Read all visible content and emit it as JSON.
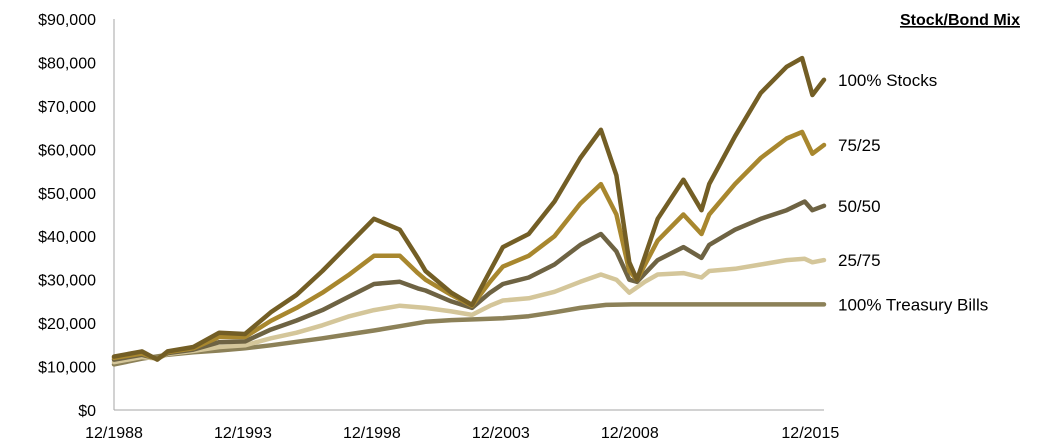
{
  "chart_data": {
    "type": "line",
    "title": "",
    "xlabel": "",
    "ylabel": "",
    "legend_title": "Stock/Bond Mix",
    "legend_placement": "right",
    "grid": false,
    "x_range": [
      1988.92,
      2016.45
    ],
    "ylim": [
      0,
      90000
    ],
    "y_ticks": [
      {
        "value": 0,
        "label": "$0"
      },
      {
        "value": 10000,
        "label": "$10,000"
      },
      {
        "value": 20000,
        "label": "$20,000"
      },
      {
        "value": 30000,
        "label": "$30,000"
      },
      {
        "value": 40000,
        "label": "$40,000"
      },
      {
        "value": 50000,
        "label": "$50,000"
      },
      {
        "value": 60000,
        "label": "$60,000"
      },
      {
        "value": 70000,
        "label": "$70,000"
      },
      {
        "value": 80000,
        "label": "$80,000"
      },
      {
        "value": 90000,
        "label": "$90,000"
      }
    ],
    "x_ticks": [
      {
        "value": 1988.92,
        "label": "12/1988"
      },
      {
        "value": 1993.92,
        "label": "12/1993"
      },
      {
        "value": 1998.92,
        "label": "12/1998"
      },
      {
        "value": 2003.92,
        "label": "12/2003"
      },
      {
        "value": 2008.92,
        "label": "12/2008"
      },
      {
        "value": 2015.92,
        "label": "12/2015"
      }
    ],
    "series": [
      {
        "name": "100% Treasury Bills",
        "color": "#8c8158",
        "width": 4.5,
        "points": [
          [
            1988.92,
            10500
          ],
          [
            1990,
            11800
          ],
          [
            1991,
            12700
          ],
          [
            1992,
            13300
          ],
          [
            1993,
            13700
          ],
          [
            1994,
            14200
          ],
          [
            1995,
            14900
          ],
          [
            1996,
            15700
          ],
          [
            1997,
            16500
          ],
          [
            1998,
            17400
          ],
          [
            1999,
            18300
          ],
          [
            2000,
            19300
          ],
          [
            2001,
            20300
          ],
          [
            2002,
            20700
          ],
          [
            2003,
            20900
          ],
          [
            2004,
            21100
          ],
          [
            2005,
            21600
          ],
          [
            2006,
            22500
          ],
          [
            2007,
            23500
          ],
          [
            2008,
            24200
          ],
          [
            2009,
            24300
          ],
          [
            2010,
            24300
          ],
          [
            2012,
            24300
          ],
          [
            2014,
            24300
          ],
          [
            2016.45,
            24300
          ]
        ]
      },
      {
        "name": "25/75",
        "color": "#d4c69a",
        "width": 4.5,
        "points": [
          [
            1988.92,
            11000
          ],
          [
            1990,
            12200
          ],
          [
            1990.6,
            11800
          ],
          [
            1991,
            12900
          ],
          [
            1992,
            13600
          ],
          [
            1993,
            14500
          ],
          [
            1994,
            14900
          ],
          [
            1995,
            16500
          ],
          [
            1996,
            17800
          ],
          [
            1997,
            19500
          ],
          [
            1998,
            21500
          ],
          [
            1999,
            23000
          ],
          [
            2000,
            24000
          ],
          [
            2001,
            23500
          ],
          [
            2002,
            22700
          ],
          [
            2002.8,
            21900
          ],
          [
            2003.5,
            24000
          ],
          [
            2004,
            25200
          ],
          [
            2005,
            25700
          ],
          [
            2006,
            27200
          ],
          [
            2007,
            29500
          ],
          [
            2007.8,
            31200
          ],
          [
            2008.4,
            30000
          ],
          [
            2008.9,
            27000
          ],
          [
            2009.5,
            29500
          ],
          [
            2010,
            31200
          ],
          [
            2011,
            31500
          ],
          [
            2011.7,
            30500
          ],
          [
            2012,
            32000
          ],
          [
            2013,
            32500
          ],
          [
            2014,
            33500
          ],
          [
            2015,
            34500
          ],
          [
            2015.7,
            34800
          ],
          [
            2016,
            34000
          ],
          [
            2016.45,
            34500
          ]
        ]
      },
      {
        "name": "50/50",
        "color": "#6e6343",
        "width": 4.5,
        "points": [
          [
            1988.92,
            11600
          ],
          [
            1990,
            12700
          ],
          [
            1990.6,
            11800
          ],
          [
            1991,
            13100
          ],
          [
            1992,
            13900
          ],
          [
            1993,
            15600
          ],
          [
            1994,
            15800
          ],
          [
            1995,
            18500
          ],
          [
            1996,
            20600
          ],
          [
            1997,
            23000
          ],
          [
            1998,
            26000
          ],
          [
            1999,
            29000
          ],
          [
            2000,
            29500
          ],
          [
            2000.7,
            28000
          ],
          [
            2001,
            27500
          ],
          [
            2002,
            25000
          ],
          [
            2002.8,
            23500
          ],
          [
            2003.5,
            27000
          ],
          [
            2004,
            29000
          ],
          [
            2005,
            30500
          ],
          [
            2006,
            33500
          ],
          [
            2007,
            38000
          ],
          [
            2007.8,
            40500
          ],
          [
            2008.4,
            36500
          ],
          [
            2008.9,
            30000
          ],
          [
            2009.2,
            29500
          ],
          [
            2010,
            34500
          ],
          [
            2011,
            37500
          ],
          [
            2011.7,
            35000
          ],
          [
            2012,
            38000
          ],
          [
            2013,
            41500
          ],
          [
            2014,
            44000
          ],
          [
            2015,
            46000
          ],
          [
            2015.7,
            48000
          ],
          [
            2016,
            46000
          ],
          [
            2016.45,
            47000
          ]
        ]
      },
      {
        "name": "75/25",
        "color": "#a8872e",
        "width": 4.5,
        "points": [
          [
            1988.92,
            12000
          ],
          [
            1990,
            13000
          ],
          [
            1990.6,
            11700
          ],
          [
            1991,
            13300
          ],
          [
            1992,
            14200
          ],
          [
            1993,
            16800
          ],
          [
            1994,
            16800
          ],
          [
            1995,
            20500
          ],
          [
            1996,
            23500
          ],
          [
            1997,
            27000
          ],
          [
            1998,
            31000
          ],
          [
            1999,
            35500
          ],
          [
            2000,
            35500
          ],
          [
            2000.7,
            31500
          ],
          [
            2001,
            30000
          ],
          [
            2002,
            26500
          ],
          [
            2002.8,
            24000
          ],
          [
            2003.5,
            29500
          ],
          [
            2004,
            33000
          ],
          [
            2005,
            35500
          ],
          [
            2006,
            40000
          ],
          [
            2007,
            47500
          ],
          [
            2007.8,
            52000
          ],
          [
            2008.4,
            45000
          ],
          [
            2008.9,
            32000
          ],
          [
            2009.2,
            30000
          ],
          [
            2010,
            39000
          ],
          [
            2011,
            45000
          ],
          [
            2011.7,
            40500
          ],
          [
            2012,
            45000
          ],
          [
            2013,
            52000
          ],
          [
            2014,
            58000
          ],
          [
            2015,
            62500
          ],
          [
            2015.6,
            64000
          ],
          [
            2016,
            59000
          ],
          [
            2016.45,
            61000
          ]
        ]
      },
      {
        "name": "100% Stocks",
        "color": "#735e25",
        "width": 4.5,
        "points": [
          [
            1988.92,
            12300
          ],
          [
            1990,
            13500
          ],
          [
            1990.6,
            11600
          ],
          [
            1991,
            13500
          ],
          [
            1992,
            14500
          ],
          [
            1993,
            17800
          ],
          [
            1994,
            17500
          ],
          [
            1995,
            22500
          ],
          [
            1996,
            26500
          ],
          [
            1997,
            32000
          ],
          [
            1998,
            38000
          ],
          [
            1999,
            44000
          ],
          [
            2000,
            41500
          ],
          [
            2000.7,
            35000
          ],
          [
            2001,
            32000
          ],
          [
            2002,
            27000
          ],
          [
            2002.8,
            24200
          ],
          [
            2003.5,
            32000
          ],
          [
            2004,
            37500
          ],
          [
            2005,
            40500
          ],
          [
            2006,
            48000
          ],
          [
            2007,
            58000
          ],
          [
            2007.8,
            64500
          ],
          [
            2008.4,
            54000
          ],
          [
            2008.9,
            34000
          ],
          [
            2009.2,
            30000
          ],
          [
            2010,
            44000
          ],
          [
            2011,
            53000
          ],
          [
            2011.7,
            46000
          ],
          [
            2012,
            52000
          ],
          [
            2013,
            63000
          ],
          [
            2014,
            73000
          ],
          [
            2015,
            79000
          ],
          [
            2015.6,
            81000
          ],
          [
            2016,
            72500
          ],
          [
            2016.45,
            76000
          ]
        ]
      }
    ]
  }
}
